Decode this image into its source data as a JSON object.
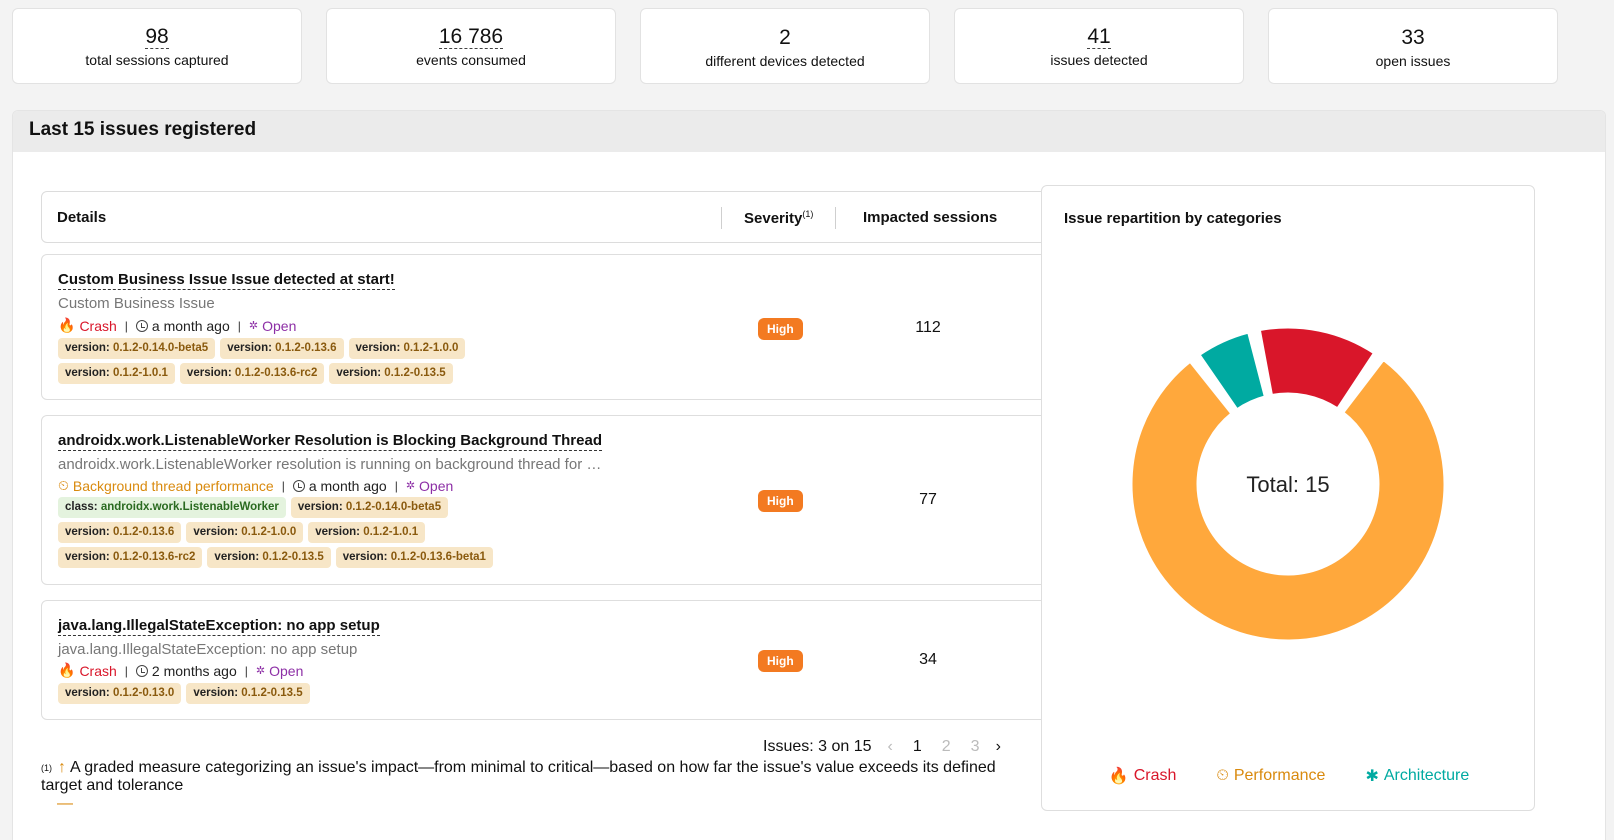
{
  "stats": [
    {
      "value": "98",
      "label": "total sessions captured",
      "dashed": true
    },
    {
      "value": "16 786",
      "label": "events consumed",
      "dashed": true
    },
    {
      "value": "2",
      "label": "different devices detected",
      "dashed": false
    },
    {
      "value": "41",
      "label": "issues detected",
      "dashed": true
    },
    {
      "value": "33",
      "label": "open issues",
      "dashed": false
    }
  ],
  "panel": {
    "title": "Last 15 issues registered",
    "columns": {
      "details": "Details",
      "severity": "Severity",
      "severity_note": "(1)",
      "impacted": "Impacted sessions"
    }
  },
  "issues": [
    {
      "title": "Custom Business Issue Issue detected at start!",
      "subtitle": "Custom Business Issue",
      "category": "Crash",
      "time": "a month ago",
      "status": "Open",
      "tags_row1": [
        {
          "k": "version: ",
          "v": "0.1.2-0.14.0-beta5"
        },
        {
          "k": "version: ",
          "v": "0.1.2-0.13.6"
        },
        {
          "k": "version: ",
          "v": "0.1.2-1.0.0"
        }
      ],
      "tags_row2": [
        {
          "k": "version: ",
          "v": "0.1.2-1.0.1"
        },
        {
          "k": "version: ",
          "v": "0.1.2-0.13.6-rc2"
        },
        {
          "k": "version: ",
          "v": "0.1.2-0.13.5"
        }
      ],
      "severity": "High",
      "sessions": "112"
    },
    {
      "title": "androidx.work.ListenableWorker Resolution is Blocking Background Thread",
      "subtitle": "androidx.work.ListenableWorker resolution is running on background thread for …",
      "category": "Background thread performance",
      "time": "a month ago",
      "status": "Open",
      "tags_row1": [
        {
          "k": "class: ",
          "v": "androidx.work.ListenableWorker"
        },
        {
          "k": "version: ",
          "v": "0.1.2-0.14.0-beta5"
        }
      ],
      "tags_row2": [
        {
          "k": "version: ",
          "v": "0.1.2-0.13.6"
        },
        {
          "k": "version: ",
          "v": "0.1.2-1.0.0"
        },
        {
          "k": "version: ",
          "v": "0.1.2-1.0.1"
        }
      ],
      "tags_row3": [
        {
          "k": "version: ",
          "v": "0.1.2-0.13.6-rc2"
        },
        {
          "k": "version: ",
          "v": "0.1.2-0.13.5"
        },
        {
          "k": "version: ",
          "v": "0.1.2-0.13.6-beta1"
        }
      ],
      "severity": "High",
      "sessions": "77"
    },
    {
      "title": "java.lang.IllegalStateException: no app setup",
      "subtitle": "java.lang.IllegalStateException: no app setup",
      "category": "Crash",
      "time": "2 months ago",
      "status": "Open",
      "tags_row1": [
        {
          "k": "version: ",
          "v": "0.1.2-0.13.0"
        },
        {
          "k": "version: ",
          "v": "0.1.2-0.13.5"
        }
      ],
      "severity": "High",
      "sessions": "34"
    }
  ],
  "pagination": {
    "label": "Issues: 3 on 15",
    "pages": [
      "1",
      "2",
      "3"
    ],
    "active": "1"
  },
  "footnote": {
    "mark": "(1)",
    "text": "A graded measure categorizing an issue's impact—from minimal to critical—based on how far the issue's value exceeds its defined target and tolerance",
    "arrow": "↑",
    "dash": "—"
  },
  "chart_data": {
    "type": "pie",
    "title": "Issue repartition by categories",
    "center_label": "Total: 15",
    "categories": [
      "Performance",
      "Architecture",
      "Crash"
    ],
    "values": [
      12,
      1,
      2
    ],
    "colors": [
      "#ffa83c",
      "#00aaa1",
      "#d9162a"
    ],
    "legend": [
      {
        "label": "Crash",
        "color": "#d9162a"
      },
      {
        "label": "Performance",
        "color": "#d98a0e"
      },
      {
        "label": "Architecture",
        "color": "#00aaa1"
      }
    ]
  }
}
